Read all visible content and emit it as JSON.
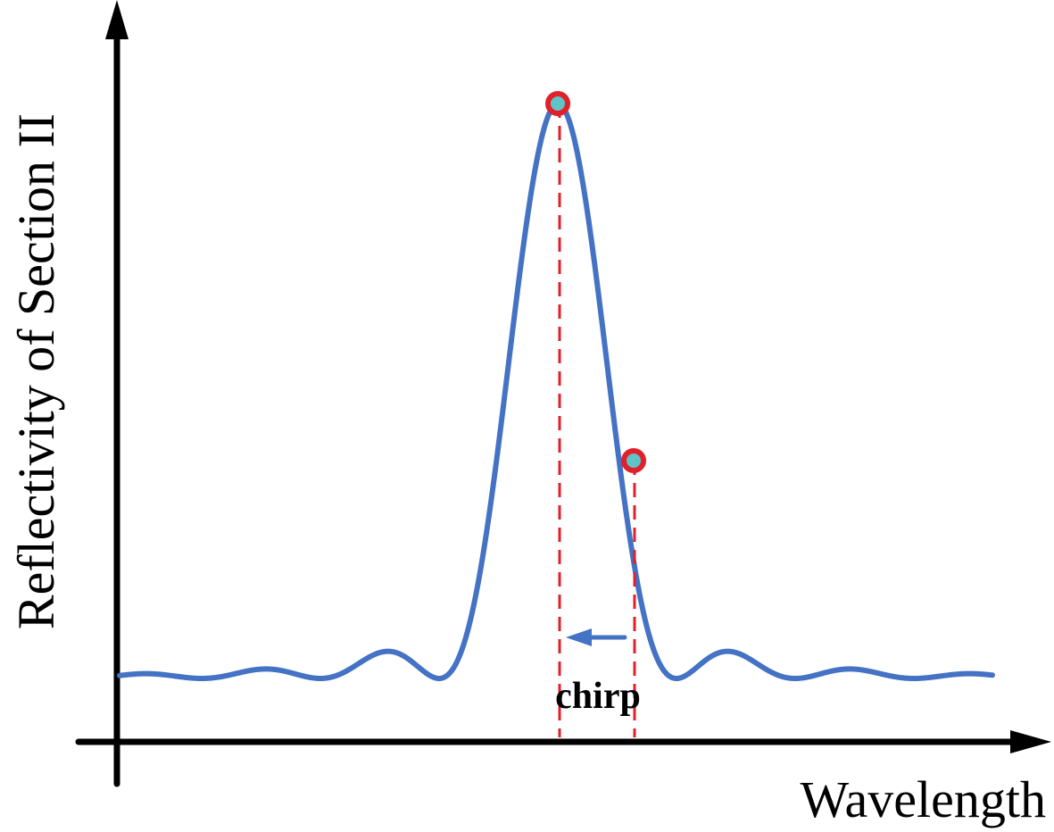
{
  "labels": {
    "y_axis": "Reflectivity of Section II",
    "x_axis": "Wavelength",
    "chirp": "chirp"
  },
  "colors": {
    "curve": "#4472C4",
    "guide": "#E0202A",
    "marker_ring": "#E0202A",
    "marker_fill": "#5FC4C8",
    "axis": "#000000",
    "shift_arrow": "#4472C4"
  },
  "spectrum": {
    "shape": "sinc-squared reflection peak with side lobes",
    "markers": [
      "peak-reflectivity-point",
      "shifted-operating-point"
    ],
    "shift_direction": "toward shorter wavelength"
  }
}
